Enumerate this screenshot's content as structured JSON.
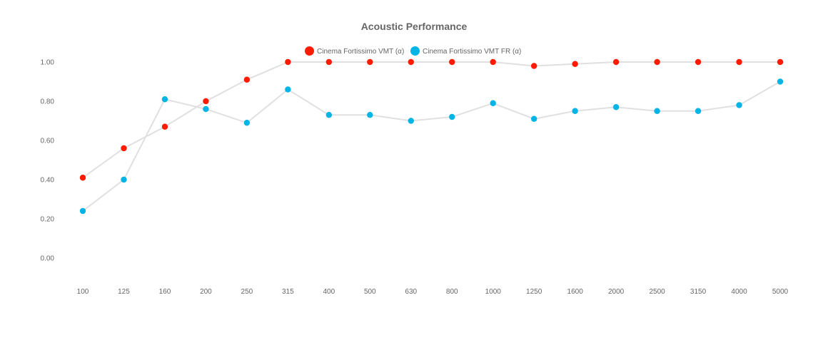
{
  "chart_data": {
    "type": "line",
    "title": "Acoustic Performance",
    "xlabel": "",
    "ylabel": "",
    "categories": [
      "100",
      "125",
      "160",
      "200",
      "250",
      "315",
      "400",
      "500",
      "630",
      "800",
      "1000",
      "1250",
      "1600",
      "2000",
      "2500",
      "3150",
      "4000",
      "5000"
    ],
    "y_ticks": [
      "0.00",
      "0.20",
      "0.40",
      "0.60",
      "0.80",
      "1.00"
    ],
    "ylim": [
      -0.12,
      1.08
    ],
    "grid": false,
    "legend_position": "top",
    "line_color": "#e0e0e0",
    "series": [
      {
        "name": "Cinema Fortissimo VMT (α)",
        "color": "#ff1a00",
        "values": [
          0.41,
          0.56,
          0.67,
          0.8,
          0.91,
          1.0,
          1.0,
          1.0,
          1.0,
          1.0,
          1.0,
          0.98,
          0.99,
          1.0,
          1.0,
          1.0,
          1.0,
          1.0
        ]
      },
      {
        "name": "Cinema Fortissimo VMT FR (α)",
        "color": "#00b4e6",
        "values": [
          0.24,
          0.4,
          0.81,
          0.76,
          0.69,
          0.86,
          0.73,
          0.73,
          0.7,
          0.72,
          0.79,
          0.71,
          0.75,
          0.77,
          0.75,
          0.75,
          0.78,
          0.9
        ]
      }
    ]
  }
}
